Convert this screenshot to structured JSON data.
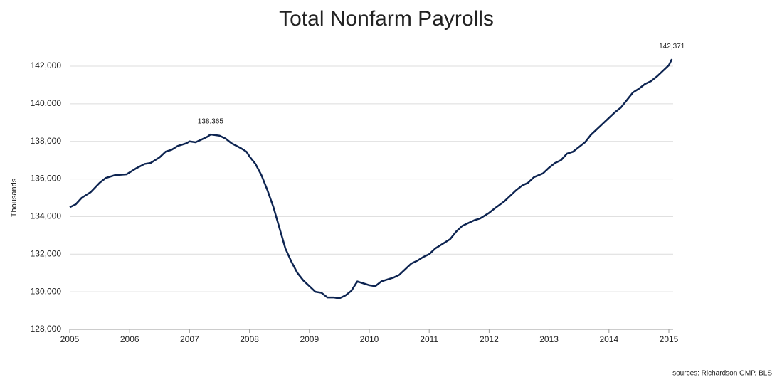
{
  "chart_data": {
    "type": "line",
    "title": "Total Nonfarm Payrolls",
    "y_label": "Thousands",
    "source": "sources: Richardson GMP, BLS",
    "x": [
      2005.0,
      2005.1,
      2005.2,
      2005.35,
      2005.5,
      2005.6,
      2005.75,
      2005.95,
      2006.1,
      2006.25,
      2006.35,
      2006.5,
      2006.6,
      2006.7,
      2006.8,
      2006.95,
      2007.0,
      2007.1,
      2007.2,
      2007.3,
      2007.35,
      2007.5,
      2007.6,
      2007.7,
      2007.85,
      2007.95,
      2008.0,
      2008.1,
      2008.2,
      2008.3,
      2008.4,
      2008.5,
      2008.6,
      2008.7,
      2008.8,
      2008.9,
      2009.0,
      2009.1,
      2009.2,
      2009.3,
      2009.4,
      2009.5,
      2009.6,
      2009.7,
      2009.8,
      2009.9,
      2010.0,
      2010.1,
      2010.2,
      2010.3,
      2010.4,
      2010.5,
      2010.6,
      2010.7,
      2010.8,
      2010.9,
      2011.0,
      2011.1,
      2011.2,
      2011.35,
      2011.45,
      2011.55,
      2011.65,
      2011.75,
      2011.85,
      2012.0,
      2012.1,
      2012.25,
      2012.35,
      2012.45,
      2012.55,
      2012.65,
      2012.75,
      2012.9,
      2013.0,
      2013.1,
      2013.2,
      2013.3,
      2013.4,
      2013.5,
      2013.6,
      2013.7,
      2013.8,
      2013.9,
      2014.0,
      2014.1,
      2014.2,
      2014.3,
      2014.4,
      2014.5,
      2014.6,
      2014.7,
      2014.8,
      2014.9,
      2015.0,
      2015.05
    ],
    "series": [
      {
        "name": "Total Nonfarm Payrolls",
        "color": "#0d2451",
        "values": [
          134500,
          134650,
          135000,
          135300,
          135800,
          136050,
          136200,
          136250,
          136550,
          136800,
          136850,
          137150,
          137450,
          137550,
          137750,
          137900,
          138000,
          137950,
          138100,
          138250,
          138365,
          138300,
          138150,
          137900,
          137650,
          137450,
          137200,
          136800,
          136200,
          135400,
          134500,
          133400,
          132300,
          131600,
          131000,
          130600,
          130300,
          130000,
          129950,
          129700,
          129700,
          129650,
          129800,
          130050,
          130550,
          130450,
          130350,
          130300,
          130550,
          130650,
          130750,
          130900,
          131200,
          131500,
          131650,
          131850,
          132000,
          132300,
          132500,
          132800,
          133200,
          133500,
          133650,
          133800,
          133900,
          134200,
          134450,
          134800,
          135100,
          135400,
          135650,
          135800,
          136100,
          136300,
          136600,
          136850,
          137000,
          137350,
          137450,
          137700,
          137950,
          138350,
          138650,
          138950,
          139250,
          139550,
          139800,
          140200,
          140600,
          140800,
          141050,
          141200,
          141450,
          141750,
          142050,
          142371
        ]
      }
    ],
    "annotations": [
      {
        "text": "138,365",
        "x": 2007.35,
        "y": 138365
      },
      {
        "text": "142,371",
        "x": 2015.05,
        "y": 142371
      }
    ],
    "xlim": [
      2005,
      2015
    ],
    "xticks": [
      2005,
      2006,
      2007,
      2008,
      2009,
      2010,
      2011,
      2012,
      2013,
      2014,
      2015
    ],
    "ylim": [
      128000,
      142000
    ],
    "yticks": [
      {
        "value": 128000,
        "label": "128,000"
      },
      {
        "value": 130000,
        "label": "130,000"
      },
      {
        "value": 132000,
        "label": "132,000"
      },
      {
        "value": 134000,
        "label": "134,000"
      },
      {
        "value": 136000,
        "label": "136,000"
      },
      {
        "value": 138000,
        "label": "138,000"
      },
      {
        "value": 140000,
        "label": "140,000"
      },
      {
        "value": 142000,
        "label": "142,000"
      }
    ],
    "grid": true
  }
}
